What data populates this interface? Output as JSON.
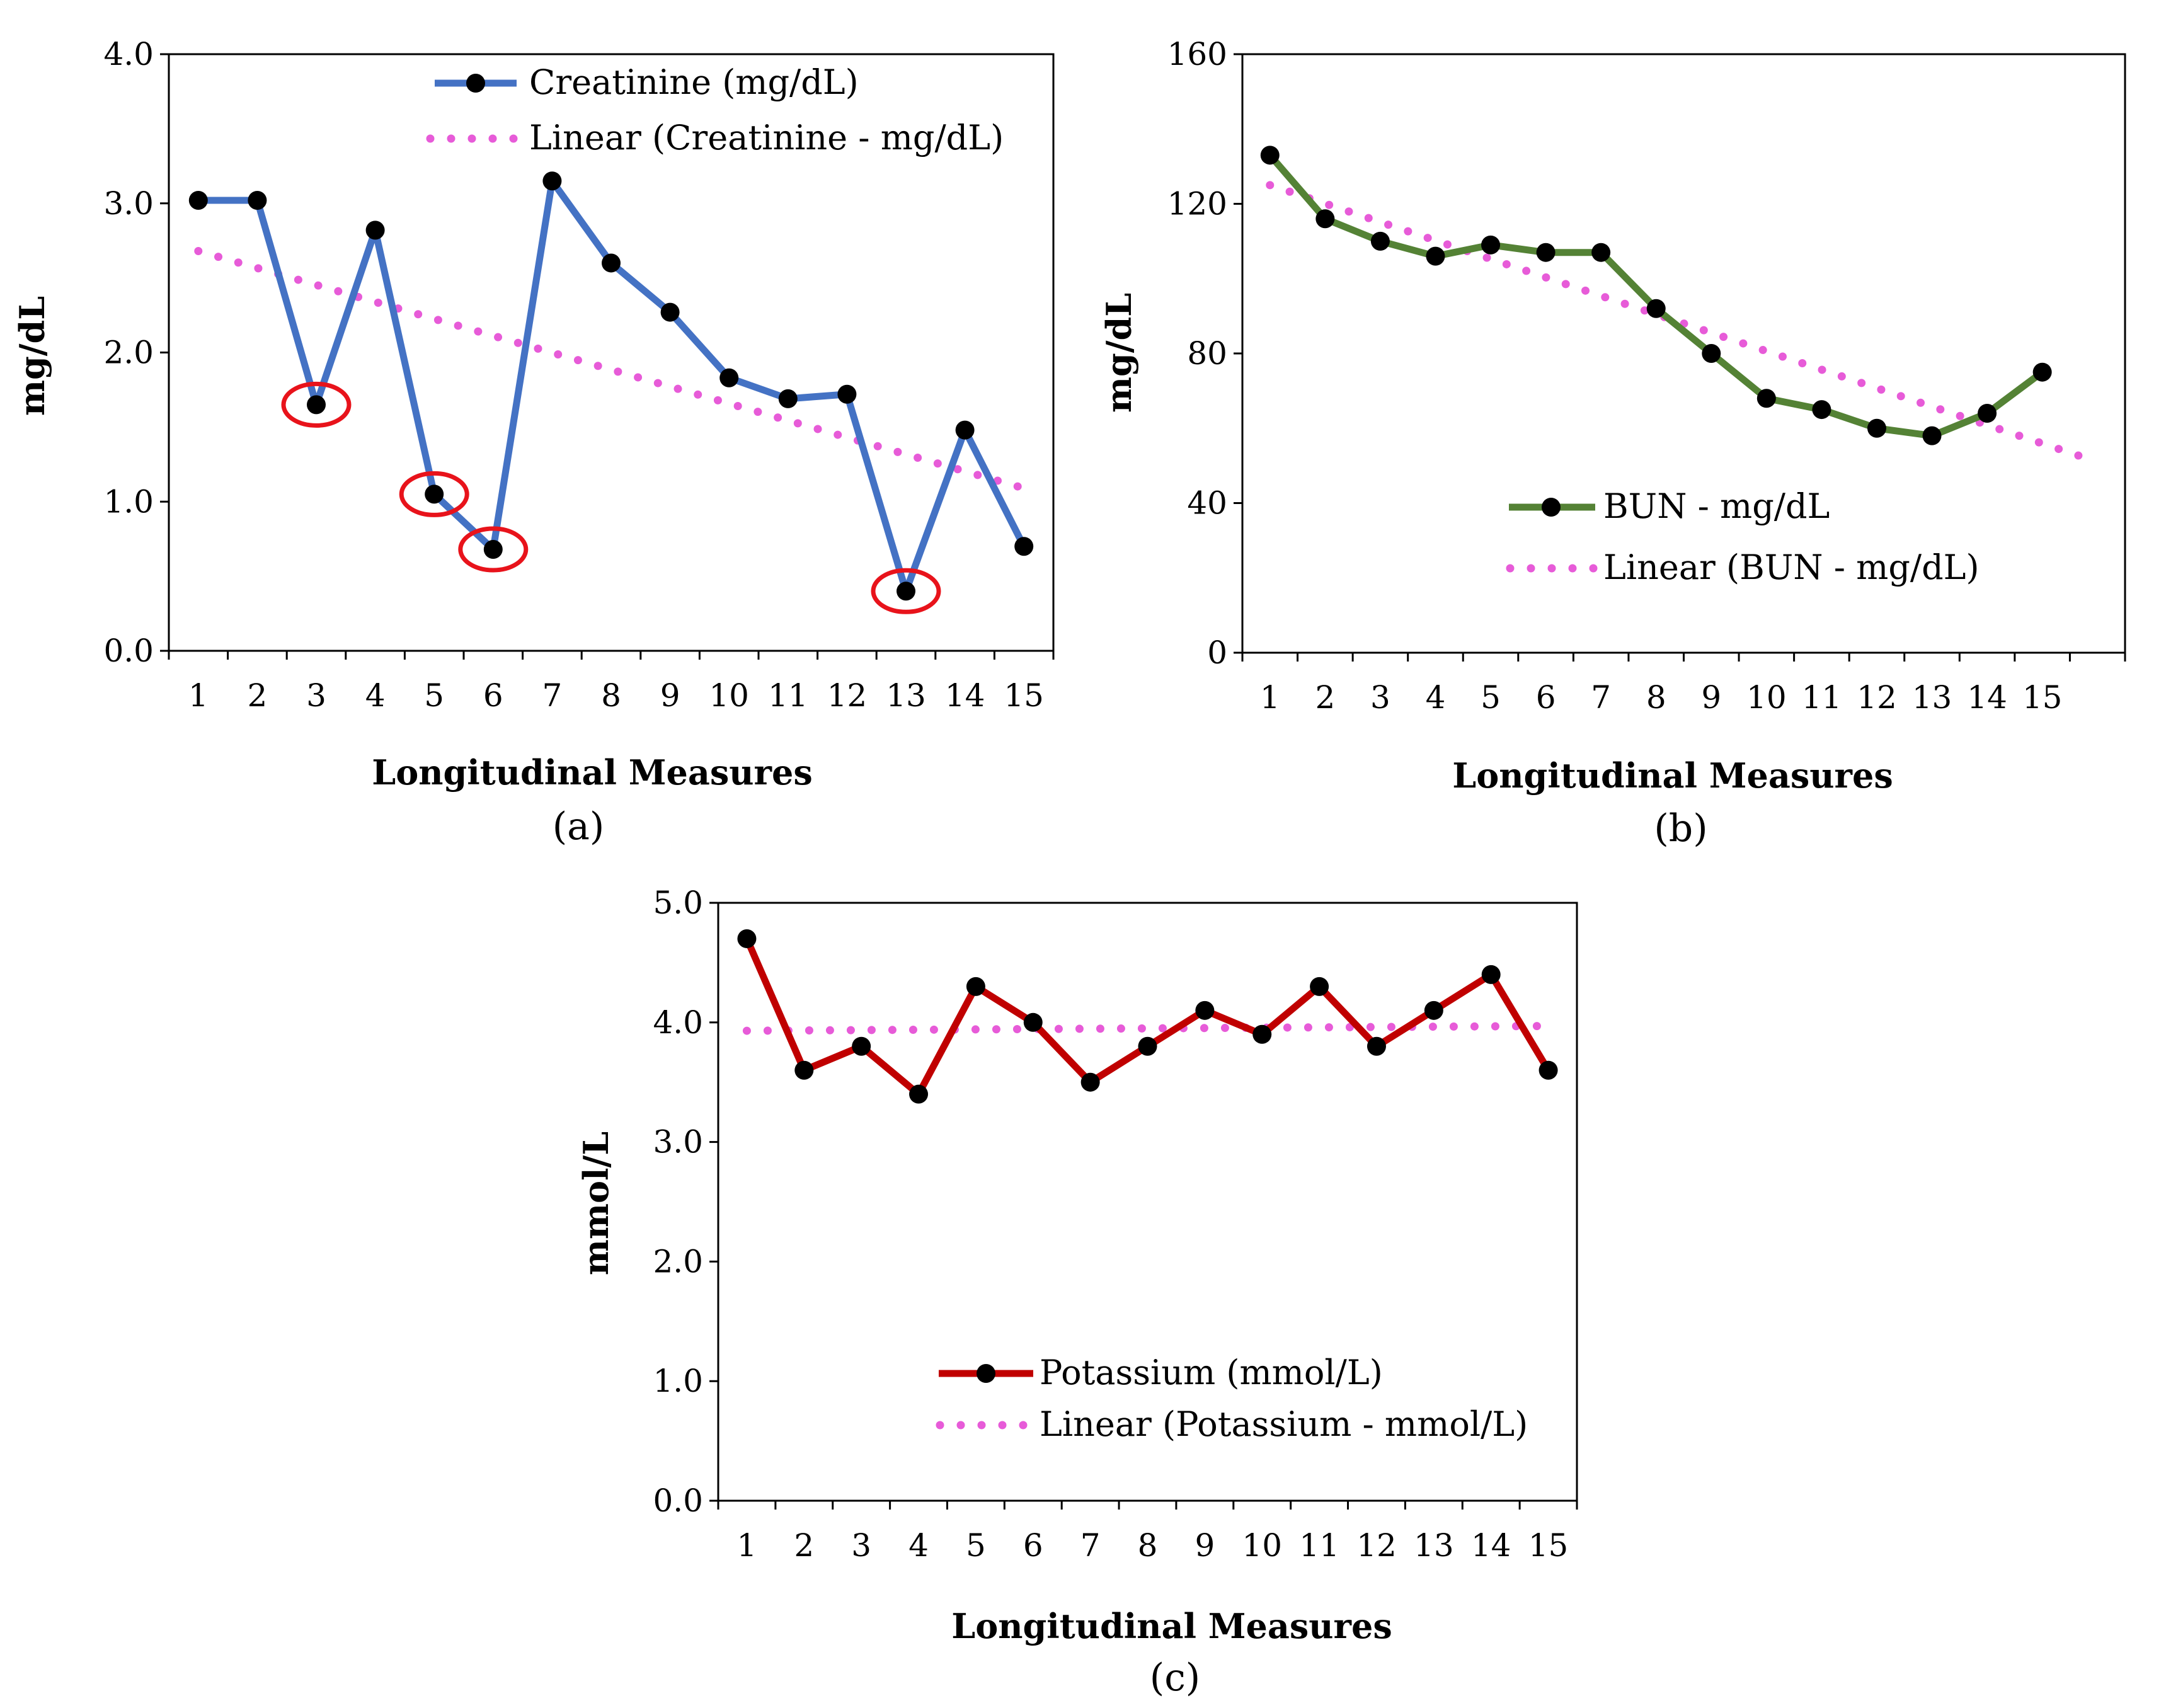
{
  "figure": {
    "chart_data": [
      {
        "id": "a",
        "type": "line",
        "caption": "(a)",
        "xlabel": "Longitudinal Measures",
        "ylabel": "mg/dL",
        "x": [
          1,
          2,
          3,
          4,
          5,
          6,
          7,
          8,
          9,
          10,
          11,
          12,
          13,
          14,
          15
        ],
        "x_tick_labels": [
          "1",
          "2",
          "3",
          "4",
          "5",
          "6",
          "7",
          "8",
          "9",
          "10",
          "11",
          "12",
          "13",
          "14",
          "15"
        ],
        "ylim": [
          0,
          4
        ],
        "y_ticks": [
          0,
          1,
          2,
          3,
          4
        ],
        "y_tick_labels": [
          "0.0",
          "1.0",
          "2.0",
          "3.0",
          "4.0"
        ],
        "grid": false,
        "legend_position": "top",
        "series": [
          {
            "name": "Creatinine (mg/dL)",
            "color": "#4472C4",
            "marker_color": "#000000",
            "values": [
              3.02,
              3.02,
              1.65,
              2.82,
              1.05,
              0.68,
              3.15,
              2.6,
              2.27,
              1.83,
              1.69,
              1.72,
              0.4,
              1.48,
              0.7
            ]
          }
        ],
        "trendline": {
          "name": "Linear (Creatinine - mg/dL)",
          "color": "#E75BD8",
          "start": [
            1,
            2.68
          ],
          "end": [
            15,
            1.09
          ]
        },
        "highlighted_points": [
          3,
          5,
          6,
          13
        ],
        "highlight_color": "#E8131B"
      },
      {
        "id": "b",
        "type": "line",
        "caption": "(b)",
        "xlabel": "Longitudinal Measures",
        "ylabel": "mg/dL",
        "x": [
          1,
          2,
          3,
          4,
          5,
          6,
          7,
          8,
          9,
          10,
          11,
          12,
          13,
          14,
          15
        ],
        "x_tick_labels": [
          "1",
          "2",
          "3",
          "4",
          "5",
          "6",
          "7",
          "8",
          "9",
          "10",
          "11",
          "12",
          "13",
          "14",
          "15"
        ],
        "x_slots": 16,
        "ylim": [
          0,
          160
        ],
        "y_ticks": [
          0,
          40,
          80,
          120,
          160
        ],
        "y_tick_labels": [
          "0",
          "40",
          "80",
          "120",
          "160"
        ],
        "grid": false,
        "legend_position": "bottom-center",
        "series": [
          {
            "name": "BUN  - mg/dL",
            "color": "#548235",
            "marker_color": "#000000",
            "values": [
              133,
              116,
              110,
              106,
              109,
              107,
              107,
              92,
              80,
              68,
              65,
              60,
              58,
              64,
              75
            ]
          }
        ],
        "trendline": {
          "name": "Linear (BUN - mg/dL)",
          "color": "#E75BD8",
          "start": [
            1,
            125
          ],
          "end": [
            16,
            51
          ]
        },
        "highlighted_points": [],
        "highlight_color": "#E8131B"
      },
      {
        "id": "c",
        "type": "line",
        "caption": "(c)",
        "xlabel": "Longitudinal Measures",
        "ylabel": "mmol/L",
        "x": [
          1,
          2,
          3,
          4,
          5,
          6,
          7,
          8,
          9,
          10,
          11,
          12,
          13,
          14,
          15
        ],
        "x_tick_labels": [
          "1",
          "2",
          "3",
          "4",
          "5",
          "6",
          "7",
          "8",
          "9",
          "10",
          "11",
          "12",
          "13",
          "14",
          "15"
        ],
        "ylim": [
          0,
          5
        ],
        "y_ticks": [
          0,
          1,
          2,
          3,
          4,
          5
        ],
        "y_tick_labels": [
          "0.0",
          "1.0",
          "2.0",
          "3.0",
          "4.0",
          "5.0"
        ],
        "grid": false,
        "legend_position": "bottom-center",
        "series": [
          {
            "name": "Potassium (mmol/L)",
            "color": "#C00000",
            "marker_color": "#000000",
            "values": [
              4.7,
              3.6,
              3.8,
              3.4,
              4.3,
              4.0,
              3.5,
              3.8,
              4.1,
              3.9,
              4.3,
              3.8,
              4.1,
              4.4,
              3.6
            ]
          }
        ],
        "trendline": {
          "name": "Linear (Potassium - mmol/L)",
          "color": "#E75BD8",
          "start": [
            1,
            3.93
          ],
          "end": [
            15,
            3.97
          ]
        },
        "highlighted_points": [],
        "highlight_color": "#E8131B"
      }
    ]
  }
}
